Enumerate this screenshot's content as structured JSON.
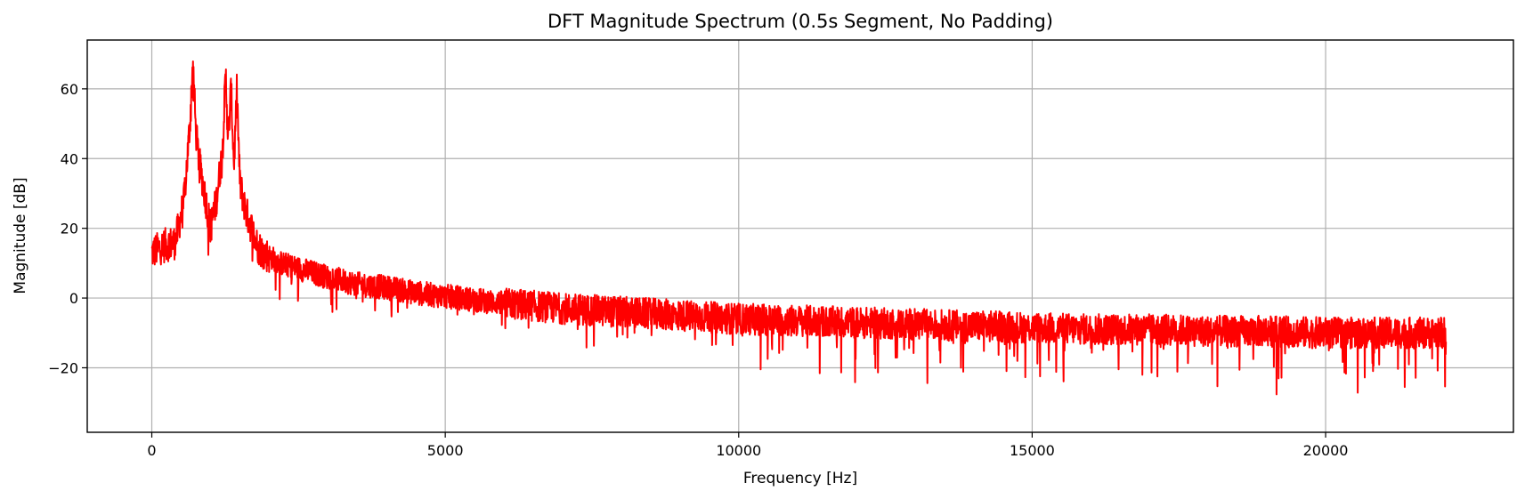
{
  "chart_data": {
    "type": "line",
    "title": "DFT Magnitude Spectrum (0.5s Segment, No Padding)",
    "xlabel": "Frequency [Hz]",
    "ylabel": "Magnitude [dB]",
    "xlim": [
      -1100,
      23200
    ],
    "ylim": [
      -38.5,
      74
    ],
    "xticks": [
      0,
      5000,
      10000,
      15000,
      20000
    ],
    "yticks": [
      -20,
      0,
      20,
      40,
      60
    ],
    "xtick_labels": [
      "0",
      "5000",
      "10000",
      "15000",
      "20000"
    ],
    "ytick_labels": [
      "−20",
      "0",
      "20",
      "40",
      "60"
    ],
    "grid": true,
    "line_color": "#ff0000",
    "series": [
      {
        "x": [
          0,
          200,
          400,
          550,
          650,
          700,
          720,
          750,
          800,
          900,
          1000,
          1100,
          1200,
          1260,
          1300,
          1350,
          1400,
          1450,
          1500,
          1600,
          1700,
          1800,
          1900,
          2200,
          2600,
          3000,
          3500,
          4000,
          4500,
          5000,
          6000,
          7000,
          8000,
          9000,
          10000,
          11000,
          12000,
          13000,
          14000,
          15000,
          16000,
          17000,
          18000,
          19000,
          20000,
          21000,
          22050
        ],
        "y": [
          13,
          15,
          16,
          28,
          50,
          68,
          60,
          48,
          40,
          30,
          20,
          28,
          42,
          64,
          45,
          60,
          38,
          60,
          33,
          25,
          20,
          15,
          13,
          10,
          8,
          6,
          4,
          3,
          1.5,
          0.5,
          -1.5,
          -3,
          -4,
          -5,
          -6,
          -6.5,
          -7,
          -7.5,
          -8,
          -8.5,
          -9,
          -9,
          -9.5,
          -9.5,
          -10,
          -10,
          -10
        ]
      }
    ]
  }
}
